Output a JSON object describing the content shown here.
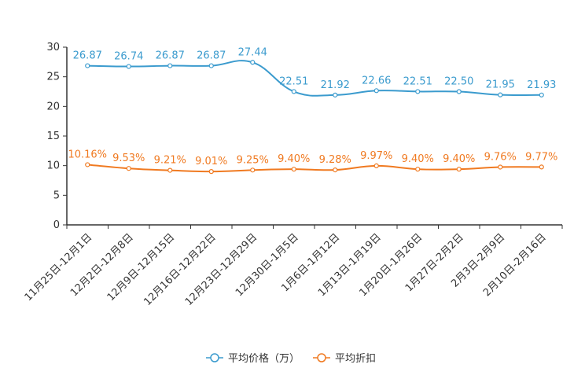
{
  "chart_data": {
    "type": "line",
    "categories": [
      "11月25日-12月1日",
      "12月2日-12月8日",
      "12月9日-12月15日",
      "12月16日-12月22日",
      "12月23日-12月29日",
      "12月30日-1月5日",
      "1月6日-1月12日",
      "1月13日-1月19日",
      "1月20日-1月26日",
      "1月27日-2月2日",
      "2月3日-2月9日",
      "2月10日-2月16日"
    ],
    "series": [
      {
        "name": "平均价格（万）",
        "color": "#3b9bce",
        "values": [
          26.87,
          26.74,
          26.87,
          26.87,
          27.44,
          22.51,
          21.92,
          22.66,
          22.51,
          22.5,
          21.95,
          21.93
        ],
        "labels": [
          "26.87",
          "26.74",
          "26.87",
          "26.87",
          "27.44",
          "22.51",
          "21.92",
          "22.66",
          "22.51",
          "22.50",
          "21.95",
          "21.93"
        ]
      },
      {
        "name": "平均折扣",
        "color": "#f07a21",
        "values": [
          10.16,
          9.53,
          9.21,
          9.01,
          9.25,
          9.4,
          9.28,
          9.97,
          9.4,
          9.4,
          9.76,
          9.77
        ],
        "labels": [
          "10.16%",
          "9.53%",
          "9.21%",
          "9.01%",
          "9.25%",
          "9.40%",
          "9.28%",
          "9.97%",
          "9.40%",
          "9.40%",
          "9.76%",
          "9.77%"
        ]
      }
    ],
    "ylim": [
      0,
      30
    ],
    "yticks": [
      "0",
      "5",
      "10",
      "15",
      "20",
      "25",
      "30"
    ],
    "title": "",
    "xlabel": "",
    "ylabel": "",
    "legend_position": "bottom-center"
  }
}
